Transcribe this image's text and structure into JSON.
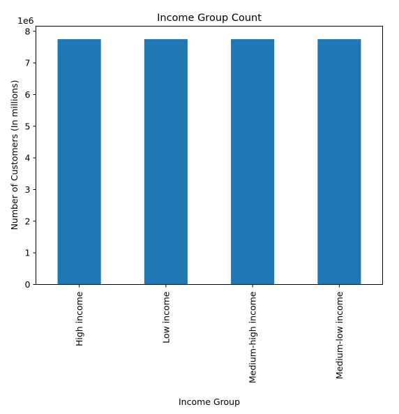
{
  "chart_data": {
    "type": "bar",
    "title": "Income Group Count",
    "xlabel": "Income Group",
    "ylabel": "Number of Customers (In millions)",
    "y_offset_label": "1e6",
    "categories": [
      "High income",
      "Low income",
      "Medium-high income",
      "Medium-low income"
    ],
    "values": [
      7750000,
      7750000,
      7750000,
      7750000
    ],
    "ylim": [
      0,
      8160000
    ],
    "y_ticks": [
      0,
      1000000,
      2000000,
      3000000,
      4000000,
      5000000,
      6000000,
      7000000,
      8000000
    ],
    "y_tick_labels": [
      "0",
      "1",
      "2",
      "3",
      "4",
      "5",
      "6",
      "7",
      "8"
    ],
    "bar_color": "#1f77b4",
    "grid": false,
    "legend": "none"
  }
}
